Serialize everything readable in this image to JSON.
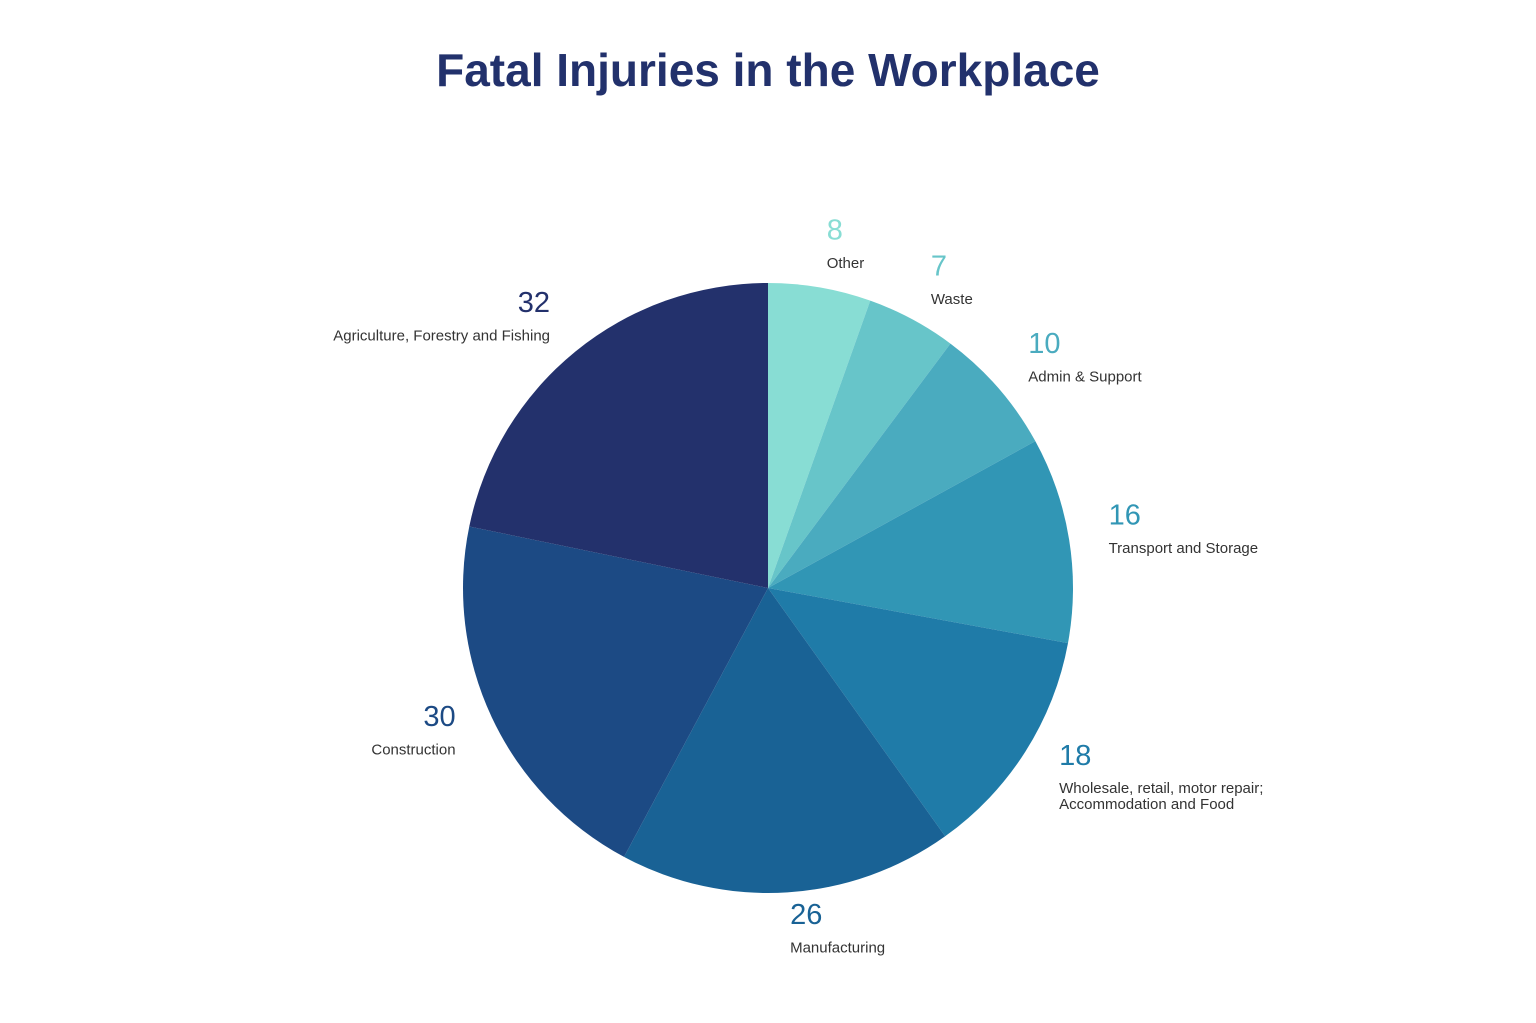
{
  "chart_data": {
    "type": "pie",
    "title": "Fatal Injuries in the Workplace",
    "categories": [
      "Other",
      "Waste",
      "Admin & Support",
      "Transport and Storage",
      "Wholesale, retail, motor repair;\nAccommodation and Food",
      "Manufacturing",
      "Construction",
      "Agriculture, Forestry and Fishing"
    ],
    "values": [
      8,
      7,
      10,
      16,
      18,
      26,
      30,
      32
    ],
    "colors": [
      "#88ddd4",
      "#67c5c9",
      "#4aabbf",
      "#3196b5",
      "#1f7ba8",
      "#196295",
      "#1c4a84",
      "#23316c"
    ]
  }
}
